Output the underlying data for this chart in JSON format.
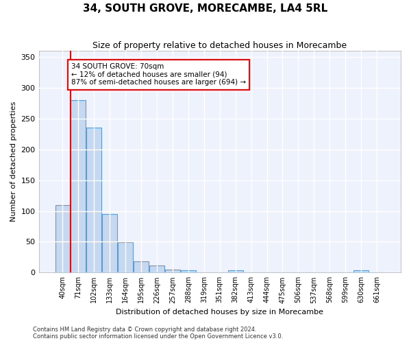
{
  "title": "34, SOUTH GROVE, MORECAMBE, LA4 5RL",
  "subtitle": "Size of property relative to detached houses in Morecambe",
  "xlabel": "Distribution of detached houses by size in Morecambe",
  "ylabel": "Number of detached properties",
  "bar_color": "#c5d8f0",
  "bar_edge_color": "#5b9bd5",
  "background_color": "#eef2fc",
  "grid_color": "#ffffff",
  "categories": [
    "40sqm",
    "71sqm",
    "102sqm",
    "133sqm",
    "164sqm",
    "195sqm",
    "226sqm",
    "257sqm",
    "288sqm",
    "319sqm",
    "351sqm",
    "382sqm",
    "413sqm",
    "444sqm",
    "475sqm",
    "506sqm",
    "537sqm",
    "568sqm",
    "599sqm",
    "630sqm",
    "661sqm"
  ],
  "values": [
    110,
    280,
    235,
    95,
    49,
    18,
    11,
    5,
    4,
    0,
    0,
    4,
    0,
    0,
    0,
    0,
    0,
    0,
    0,
    4,
    0
  ],
  "ylim": [
    0,
    360
  ],
  "yticks": [
    0,
    50,
    100,
    150,
    200,
    250,
    300,
    350
  ],
  "property_line_x": 0.5,
  "annotation_title": "34 SOUTH GROVE: 70sqm",
  "annotation_line1": "← 12% of detached houses are smaller (94)",
  "annotation_line2": "87% of semi-detached houses are larger (694) →",
  "footnote1": "Contains HM Land Registry data © Crown copyright and database right 2024.",
  "footnote2": "Contains public sector information licensed under the Open Government Licence v3.0."
}
